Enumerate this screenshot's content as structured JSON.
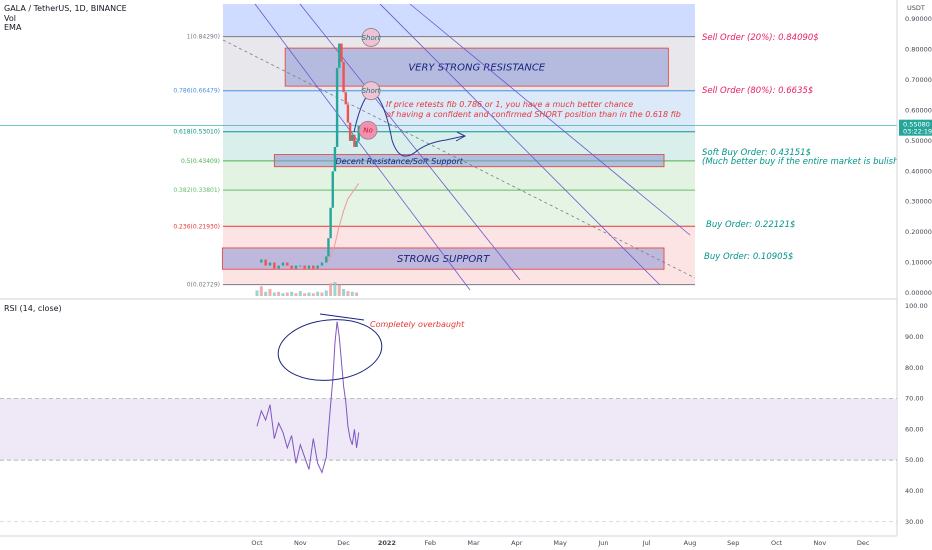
{
  "header": {
    "symbol_line": "GALA / TetherUS, 1D, BINANCE",
    "vol_label": "Vol",
    "ema_label": "EMA",
    "rsi_label": "RSI (14, close)"
  },
  "chart_data": {
    "type": "line",
    "price_axis": {
      "currency": "USDT",
      "ticks": [
        "0.90000",
        "0.80000",
        "0.70000",
        "0.60000",
        "0.50000",
        "0.40000",
        "0.30000",
        "0.20000",
        "0.10000",
        "0.00000"
      ],
      "tick_values": [
        0.9,
        0.8,
        0.7,
        0.6,
        0.5,
        0.4,
        0.3,
        0.2,
        0.1,
        0.0
      ],
      "last_price": "0.55080",
      "countdown": "03:22:19",
      "ylim": [
        -0.01,
        0.95
      ]
    },
    "rsi_axis": {
      "ticks": [
        "100.00",
        "90.00",
        "80.00",
        "70.00",
        "60.00",
        "50.00",
        "40.00",
        "30.00"
      ],
      "tick_values": [
        100,
        90,
        80,
        70,
        60,
        50,
        40,
        30
      ],
      "overbought": 70,
      "oversold": 50,
      "ylim": [
        27,
        102
      ]
    },
    "time_axis": {
      "labels": [
        "Oct",
        "Nov",
        "Dec",
        "2022",
        "Feb",
        "Mar",
        "Apr",
        "May",
        "Jun",
        "Jul",
        "Aug",
        "Sep",
        "Oct",
        "Nov",
        "Dec"
      ],
      "positions_months": [
        0,
        1,
        2,
        3,
        4,
        5,
        6,
        7,
        8,
        9,
        10,
        11,
        12,
        13,
        14
      ],
      "bold": [
        "2022"
      ]
    },
    "fib_levels": [
      {
        "label": "1(0.84290)",
        "value": 0.8429,
        "color": "#787b86"
      },
      {
        "label": "0.786(0.66479)",
        "value": 0.6648,
        "color": "#4a90e2"
      },
      {
        "label": "0.618(0.53010)",
        "value": 0.5301,
        "color": "#089981"
      },
      {
        "label": "0.5(0.43409)",
        "value": 0.4341,
        "color": "#4caf50"
      },
      {
        "label": "0.382(0.33801)",
        "value": 0.338,
        "color": "#66bb6a"
      },
      {
        "label": "0.236(0.21930)",
        "value": 0.2193,
        "color": "#e53935"
      },
      {
        "label": "0(0.02729)",
        "value": 0.0273,
        "color": "#787b86"
      }
    ],
    "price_series": {
      "name": "GALA/USDT",
      "x_months": [
        0.0,
        0.1,
        0.2,
        0.3,
        0.4,
        0.5,
        0.6,
        0.7,
        0.8,
        0.9,
        1.0,
        1.1,
        1.2,
        1.3,
        1.4,
        1.5,
        1.6,
        1.65,
        1.7,
        1.75,
        1.8,
        1.85,
        1.9,
        1.95,
        2.0,
        2.05,
        2.1,
        2.15,
        2.2,
        2.25,
        2.3,
        2.35
      ],
      "y": [
        0.1,
        0.11,
        0.09,
        0.1,
        0.08,
        0.09,
        0.1,
        0.09,
        0.08,
        0.09,
        0.09,
        0.08,
        0.09,
        0.08,
        0.09,
        0.1,
        0.12,
        0.18,
        0.28,
        0.4,
        0.48,
        0.74,
        0.82,
        0.76,
        0.66,
        0.62,
        0.56,
        0.5,
        0.52,
        0.48,
        0.5,
        0.55
      ]
    },
    "ema_series": {
      "x_months": [
        1.6,
        1.7,
        1.8,
        1.9,
        2.0,
        2.1,
        2.2,
        2.3,
        2.35
      ],
      "y": [
        0.1,
        0.12,
        0.16,
        0.22,
        0.27,
        0.31,
        0.33,
        0.35,
        0.36
      ]
    },
    "rsi_series": {
      "x_months": [
        0.0,
        0.1,
        0.2,
        0.3,
        0.4,
        0.5,
        0.6,
        0.7,
        0.8,
        0.9,
        1.0,
        1.1,
        1.2,
        1.3,
        1.4,
        1.5,
        1.6,
        1.7,
        1.75,
        1.8,
        1.85,
        1.9,
        1.95,
        2.0,
        2.05,
        2.1,
        2.15,
        2.2,
        2.25,
        2.3,
        2.35
      ],
      "y": [
        61,
        66,
        63,
        68,
        57,
        62,
        59,
        54,
        58,
        49,
        55,
        51,
        47,
        57,
        49,
        46,
        51,
        68,
        76,
        88,
        95,
        90,
        82,
        74,
        69,
        61,
        57,
        55,
        60,
        54,
        59
      ]
    },
    "volume_series": {
      "x_months": [
        0.0,
        0.1,
        0.2,
        0.3,
        0.4,
        0.5,
        0.6,
        0.7,
        0.8,
        0.9,
        1.0,
        1.1,
        1.2,
        1.3,
        1.4,
        1.5,
        1.6,
        1.7,
        1.8,
        1.9,
        2.0,
        2.1,
        2.2,
        2.3
      ],
      "v": [
        0.4,
        0.7,
        0.3,
        0.5,
        0.25,
        0.3,
        0.2,
        0.25,
        0.3,
        0.2,
        0.35,
        0.2,
        0.25,
        0.2,
        0.3,
        0.25,
        0.4,
        0.9,
        1.0,
        0.8,
        0.5,
        0.35,
        0.3,
        0.25
      ]
    },
    "zones": [
      {
        "label": "VERY STRONG RESISTANCE",
        "y_top": 0.805,
        "y_bottom": 0.68,
        "x_start_month": 0.65,
        "x_end_month": 9.5
      },
      {
        "label": "Decent Resistance/Soft Support",
        "y_top": 0.455,
        "y_bottom": 0.415,
        "x_start_month": 0.4,
        "x_end_month": 9.4
      },
      {
        "label": "STRONG SUPPORT",
        "y_top": 0.148,
        "y_bottom": 0.078,
        "x_start_month": -0.8,
        "x_end_month": 9.4
      }
    ],
    "markers": [
      {
        "label": "Short",
        "value": 0.84
      },
      {
        "label": "Short",
        "value": 0.665
      },
      {
        "label": "No",
        "value": 0.535
      }
    ],
    "annotations": {
      "sell_30": "Sell Order (20%): 0.84090$",
      "sell_80": "Sell Order (80%): 0.6635$",
      "soft_buy": "Soft Buy Order: 0.43151$",
      "soft_buy_note": "(Much better buy if the entire market is bulish)",
      "buy_1": "Buy Order: 0.22121$",
      "buy_2": "Buy Order: 0.10905$",
      "note_line1": "If price retests fib 0.786 or 1, you have a much better chance",
      "note_line2": "of having a confident and confirmed SHORT position than in the 0.618 fib",
      "rsi_note": "Completely overbaught"
    },
    "colors": {
      "sell": "#e91e63",
      "buy": "#009688",
      "zone_fill": "#8a96d6",
      "zone_text": "#1a237e",
      "channel": "#6a5acd",
      "rsi_line": "#7e57c2",
      "price_up": "#26a69a",
      "price_down": "#ef5350"
    }
  }
}
